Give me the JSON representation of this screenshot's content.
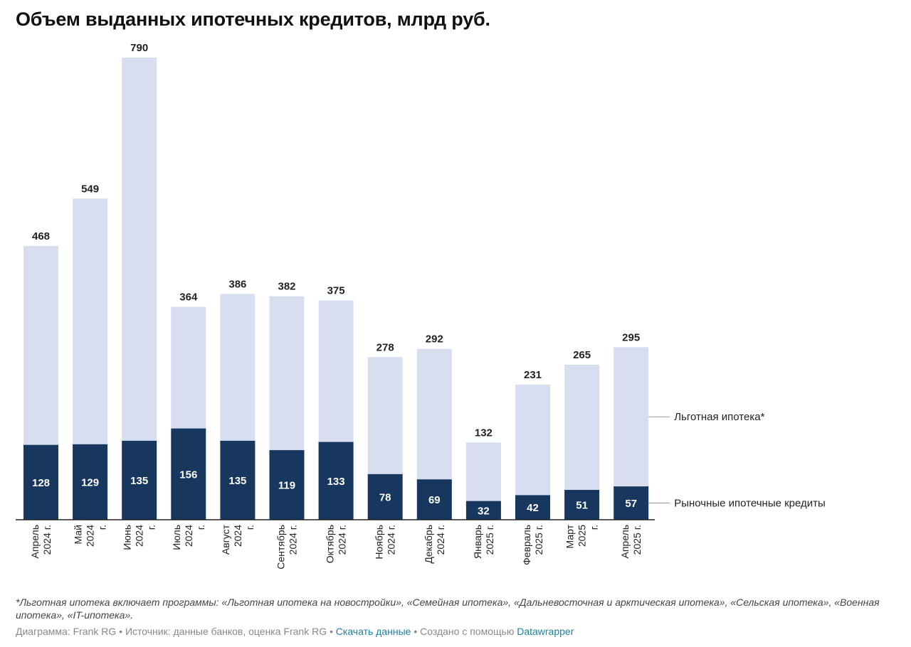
{
  "title": "Объем выданных ипотечных кредитов, млрд руб.",
  "chart_data": {
    "type": "bar",
    "stacked": true,
    "title": "Объем выданных ипотечных кредитов, млрд руб.",
    "categories": [
      [
        "Апрель",
        "2024 г."
      ],
      [
        "Май",
        "2024",
        "г."
      ],
      [
        "Июнь",
        "2024",
        "г."
      ],
      [
        "Июль",
        "2024",
        "г."
      ],
      [
        "Август",
        "2024",
        "г."
      ],
      [
        "Сентябрь",
        "2024 г."
      ],
      [
        "Октябрь",
        "2024 г."
      ],
      [
        "Ноябрь",
        "2024 г."
      ],
      [
        "Декабрь",
        "2024 г."
      ],
      [
        "Январь",
        "2025 г."
      ],
      [
        "Февраль",
        "2025 г."
      ],
      [
        "Март",
        "2025",
        "г."
      ],
      [
        "Апрель",
        "2025 г."
      ]
    ],
    "series": [
      {
        "name": "Рыночные ипотечные кредиты",
        "color": "#17375e",
        "values": [
          128,
          129,
          135,
          156,
          135,
          119,
          133,
          78,
          69,
          32,
          42,
          51,
          57
        ]
      },
      {
        "name": "Льготная ипотека*",
        "color": "#d7deef",
        "values": [
          340,
          420,
          655,
          208,
          251,
          263,
          242,
          200,
          223,
          100,
          189,
          214,
          238
        ]
      }
    ],
    "totals": [
      468,
      549,
      790,
      364,
      386,
      382,
      375,
      278,
      292,
      132,
      231,
      265,
      295
    ],
    "ylim": [
      0,
      790
    ],
    "grid": false,
    "legend": "right, direct labels"
  },
  "footnote": "*Льготная ипотека включает программы: «Льготная ипотека на новостройки», «Семейная ипотека», «Дальневосточная и арктическая ипотека», «Сельская ипотека», «Военная ипотека», «IT-ипотека».",
  "credits": {
    "prefix": "Диаграмма: Frank RG • Источник: данные банков, оценка Frank RG •",
    "download_link": "Скачать данные",
    "middle": "• Создано с помощью",
    "tool_link": "Datawrapper"
  }
}
